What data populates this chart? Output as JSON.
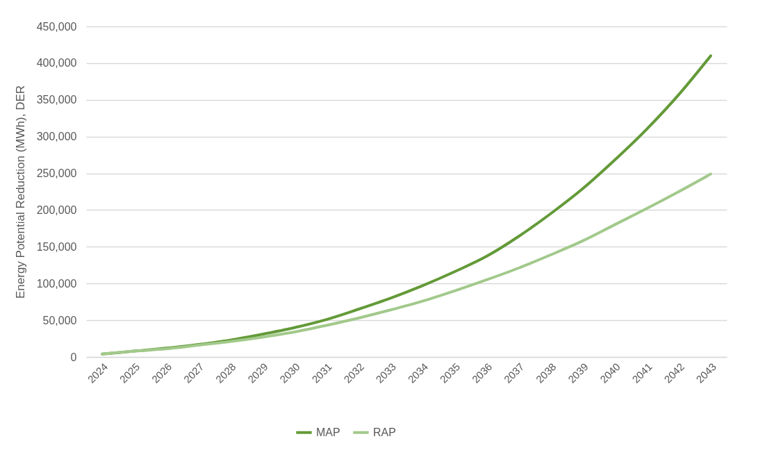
{
  "chart_data": {
    "type": "line",
    "ylabel": "Energy Potential Reduction (MWh), DER",
    "categories": [
      "2024",
      "2025",
      "2026",
      "2027",
      "2028",
      "2029",
      "2030",
      "2031",
      "2032",
      "2033",
      "2034",
      "2035",
      "2036",
      "2037",
      "2038",
      "2039",
      "2040",
      "2041",
      "2042",
      "2043"
    ],
    "series": [
      {
        "name": "MAP",
        "color": "#639a38",
        "values": [
          4000,
          8000,
          12000,
          17000,
          23000,
          31000,
          40000,
          51000,
          65000,
          80000,
          97000,
          116000,
          137000,
          164000,
          195000,
          229000,
          268000,
          310000,
          357000,
          410000
        ]
      },
      {
        "name": "RAP",
        "color": "#a2c98b",
        "values": [
          4000,
          8000,
          11000,
          16000,
          21000,
          27000,
          34000,
          43000,
          53000,
          64000,
          76000,
          90000,
          105000,
          121000,
          139000,
          158000,
          180000,
          202000,
          225000,
          249000
        ]
      }
    ],
    "ylim": [
      0,
      450000
    ],
    "yticks": [
      0,
      {
        "value": 50000,
        "label": "50,000"
      },
      {
        "value": 100000,
        "label": "100,000"
      },
      {
        "value": 150000,
        "label": "150,000"
      },
      {
        "value": 200000,
        "label": "200,000"
      },
      {
        "value": 250000,
        "label": "250,000"
      },
      {
        "value": 300000,
        "label": "300,000"
      },
      {
        "value": 350000,
        "label": "350,000"
      },
      {
        "value": 400000,
        "label": "400,000"
      },
      {
        "value": 450000,
        "label": "450,000"
      }
    ],
    "grid": "y",
    "legend": "bottom",
    "marker": "none",
    "line_style": "solid"
  }
}
